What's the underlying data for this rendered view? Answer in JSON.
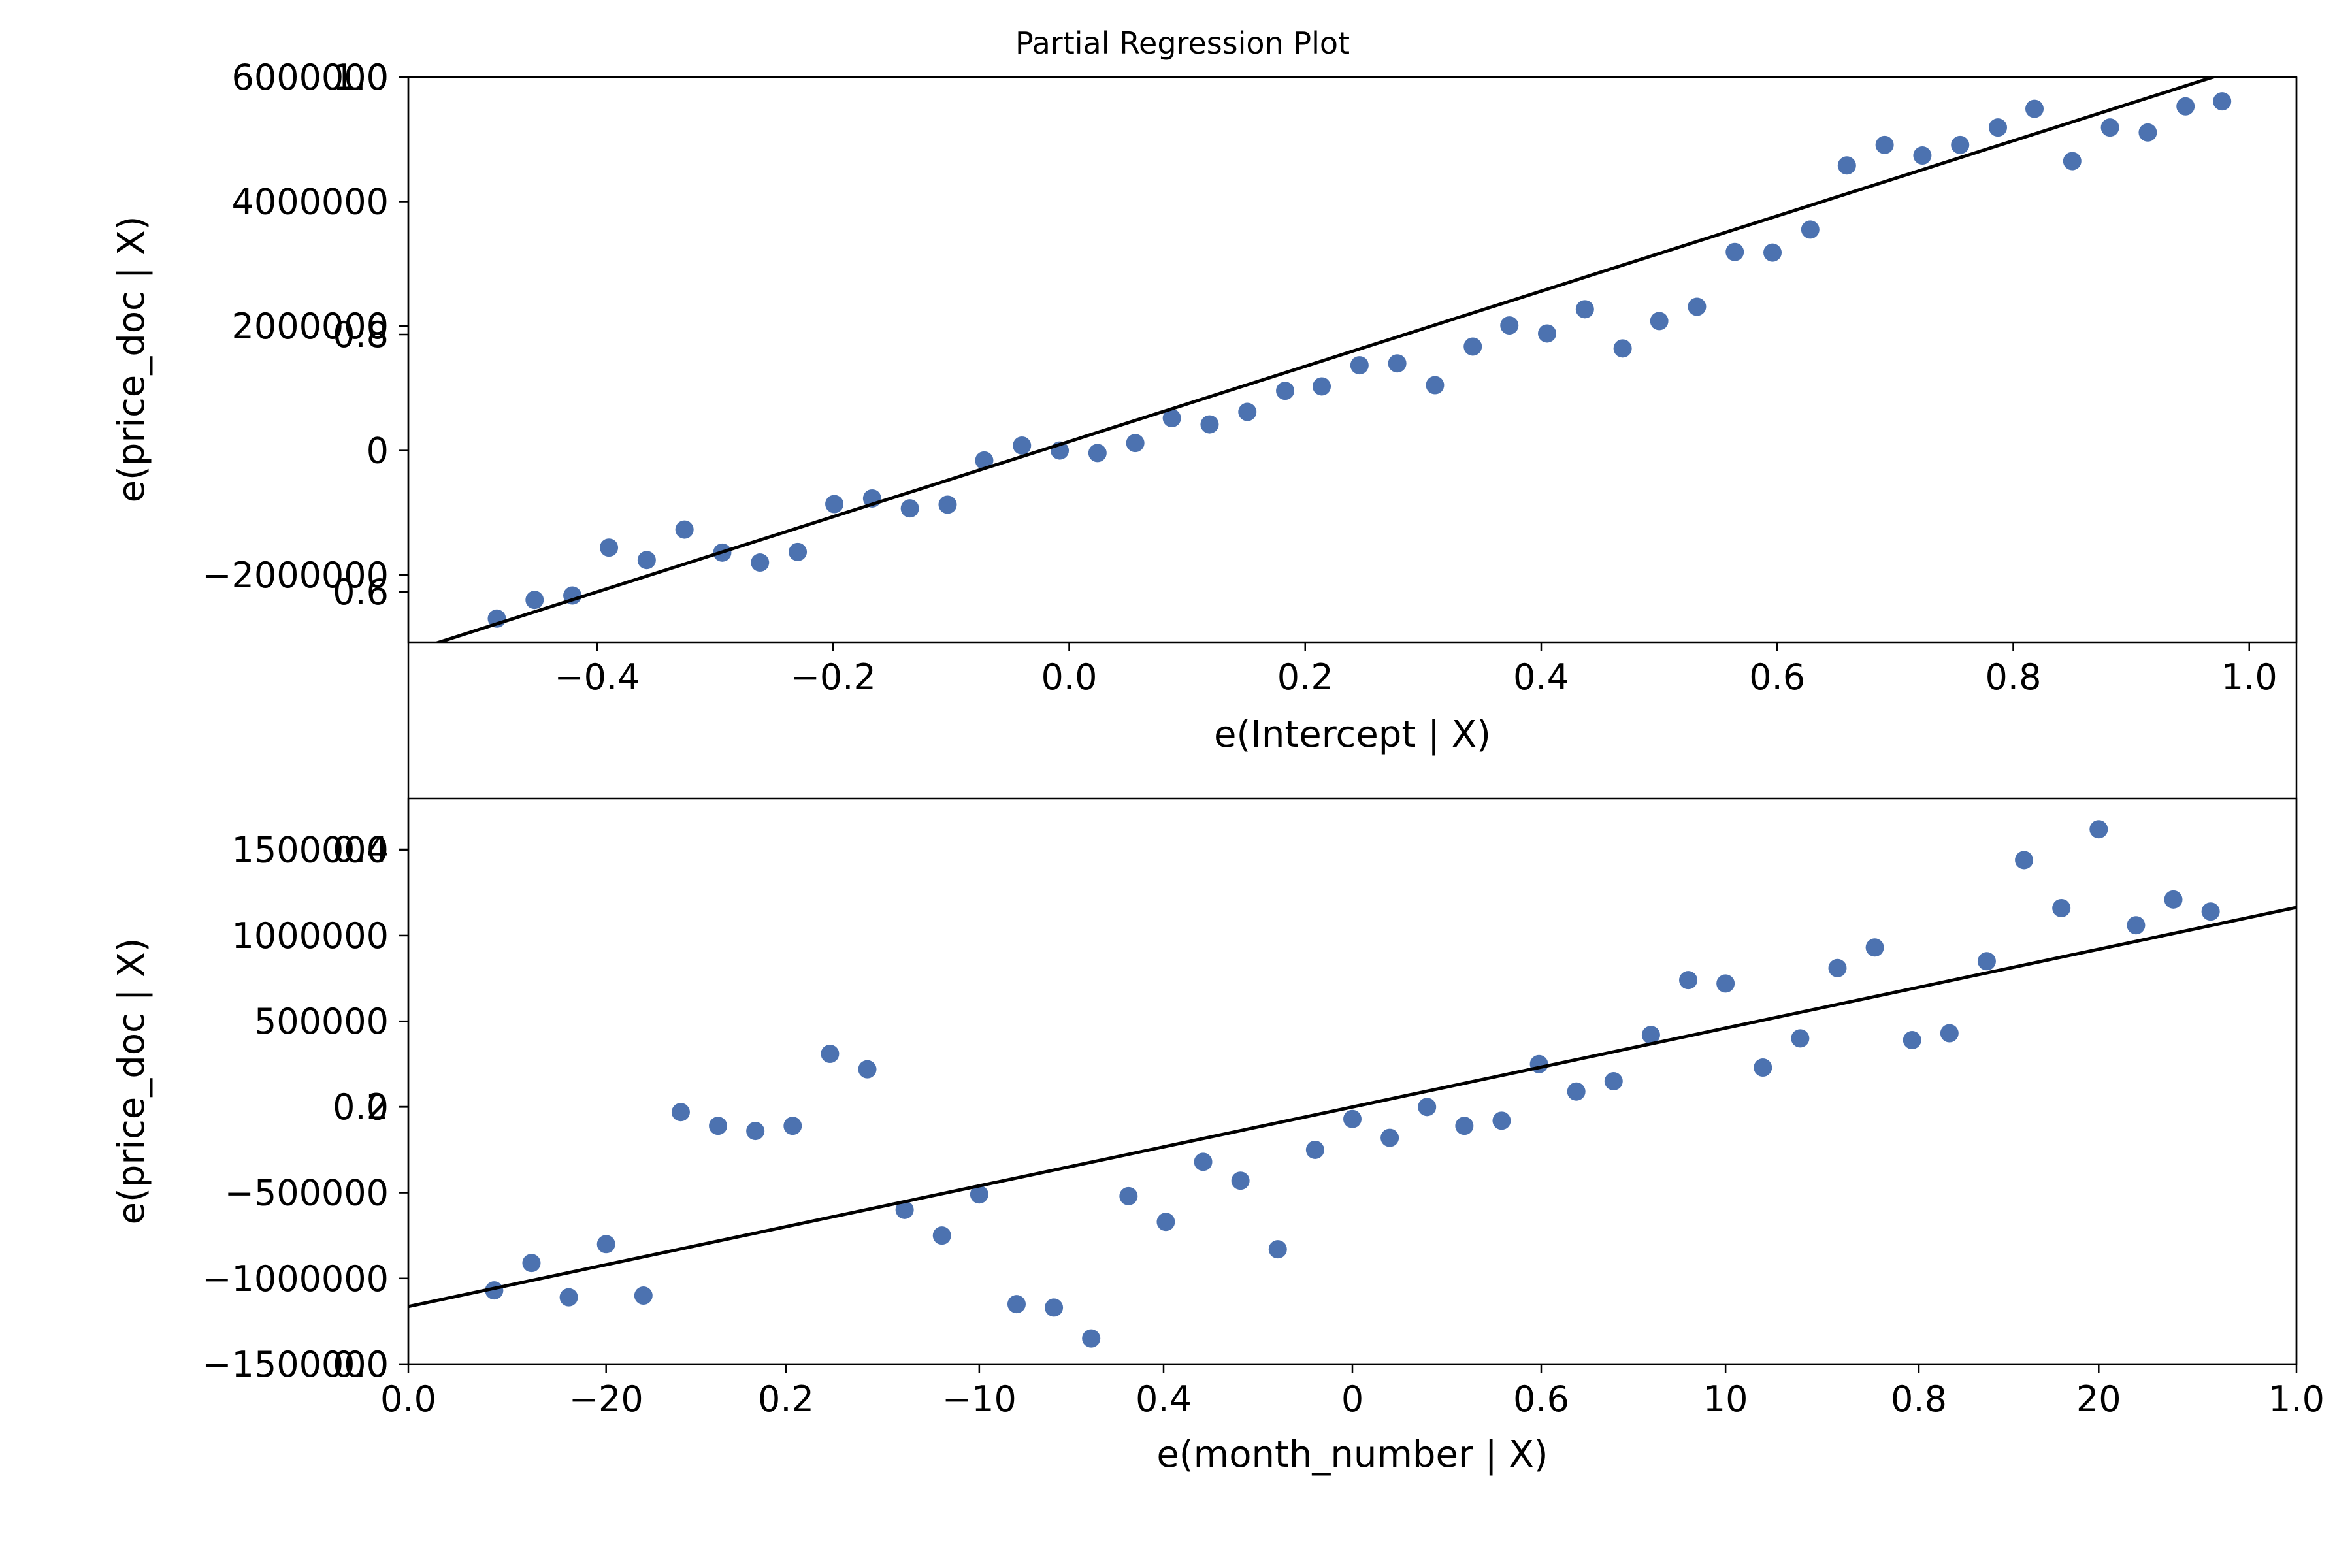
{
  "title": "Partial Regression Plot",
  "colors": {
    "point": "#4c72b0",
    "line": "#000000",
    "axes": "#000000"
  },
  "overlay_ticks": [
    "0.0",
    "0.2",
    "0.4",
    "0.6",
    "0.8",
    "1.0"
  ],
  "chart_data": [
    {
      "type": "scatter",
      "title": "",
      "xlabel": "e(Intercept | X)",
      "ylabel": "e(price_doc | X)",
      "xlim": [
        -0.56,
        1.04
      ],
      "ylim": [
        -3080000,
        6000000
      ],
      "xticks": [
        -0.4,
        -0.2,
        0.0,
        0.2,
        0.4,
        0.6,
        0.8,
        1.0
      ],
      "xtick_labels": [
        "−0.4",
        "−0.2",
        "0.0",
        "0.2",
        "0.4",
        "0.6",
        "0.8",
        "1.0"
      ],
      "yticks": [
        -2000000,
        0,
        2000000,
        4000000,
        6000000
      ],
      "ytick_labels": [
        "−2000000",
        "0",
        "2000000",
        "4000000",
        "6000000"
      ],
      "grid": false,
      "fit_line": {
        "slope": 6040000,
        "intercept": 145000
      },
      "x": [
        -0.485,
        -0.453,
        -0.421,
        -0.39,
        -0.358,
        -0.326,
        -0.294,
        -0.262,
        -0.23,
        -0.199,
        -0.167,
        -0.135,
        -0.103,
        -0.072,
        -0.04,
        -0.008,
        0.024,
        0.056,
        0.087,
        0.119,
        0.151,
        0.183,
        0.214,
        0.246,
        0.278,
        0.31,
        0.342,
        0.373,
        0.405,
        0.437,
        0.469,
        0.5,
        0.532,
        0.564,
        0.596,
        0.628,
        0.659,
        0.691,
        0.723,
        0.755,
        0.787,
        0.818,
        0.85,
        0.882,
        0.914,
        0.946,
        0.977
      ],
      "y": [
        -2700000,
        -2400000,
        -2330000,
        -1560000,
        -1760000,
        -1270000,
        -1640000,
        -1800000,
        -1630000,
        -860000,
        -770000,
        -930000,
        -870000,
        -160000,
        80000,
        0,
        -40000,
        120000,
        520000,
        420000,
        620000,
        960000,
        1030000,
        1370000,
        1400000,
        1050000,
        1670000,
        2010000,
        1880000,
        2270000,
        1640000,
        2080000,
        2310000,
        3190000,
        3180000,
        3550000,
        4580000,
        4910000,
        4740000,
        4910000,
        5190000,
        5490000,
        4650000,
        5190000,
        5110000,
        5530000,
        5610000
      ]
    },
    {
      "type": "scatter",
      "title": "",
      "xlabel": "e(month_number | X)",
      "ylabel": "e(price_doc | X)",
      "xlim": [
        -25.3,
        25.3
      ],
      "ylim": [
        -1500000,
        1800000
      ],
      "xticks": [
        -20,
        -10,
        0,
        10,
        20
      ],
      "xtick_labels": [
        "−20",
        "−10",
        "0",
        "10",
        "20"
      ],
      "yticks": [
        -1500000,
        -1000000,
        -500000,
        0,
        500000,
        1000000,
        1500000
      ],
      "ytick_labels": [
        "−1500000",
        "−1000000",
        "−500000",
        "0",
        "500000",
        "1000000",
        "1500000"
      ],
      "grid": false,
      "fit_line": {
        "slope": 46000,
        "intercept": 0
      },
      "x": [
        -23,
        -22,
        -21,
        -20,
        -19,
        -18,
        -17,
        -16,
        -15,
        -14,
        -13,
        -12,
        -11,
        -10,
        -9,
        -8,
        -7,
        -6,
        -5,
        -4,
        -3,
        -2,
        -1,
        0,
        1,
        2,
        3,
        4,
        5,
        6,
        7,
        8,
        9,
        10,
        11,
        12,
        13,
        14,
        15,
        16,
        17,
        18,
        19,
        20,
        21,
        22,
        23
      ],
      "y": [
        -1070000,
        -910000,
        -1110000,
        -800000,
        -1100000,
        -30000,
        -110000,
        -140000,
        -110000,
        310000,
        220000,
        -600000,
        -750000,
        -510000,
        -1150000,
        -1170000,
        -1350000,
        -520000,
        -670000,
        -320000,
        -430000,
        -830000,
        -250000,
        -70000,
        -180000,
        0,
        -110000,
        -80000,
        250000,
        90000,
        150000,
        420000,
        740000,
        720000,
        230000,
        400000,
        810000,
        930000,
        390000,
        430000,
        850000,
        1440000,
        1160000,
        1620000,
        1060000,
        1210000,
        1140000
      ]
    }
  ]
}
